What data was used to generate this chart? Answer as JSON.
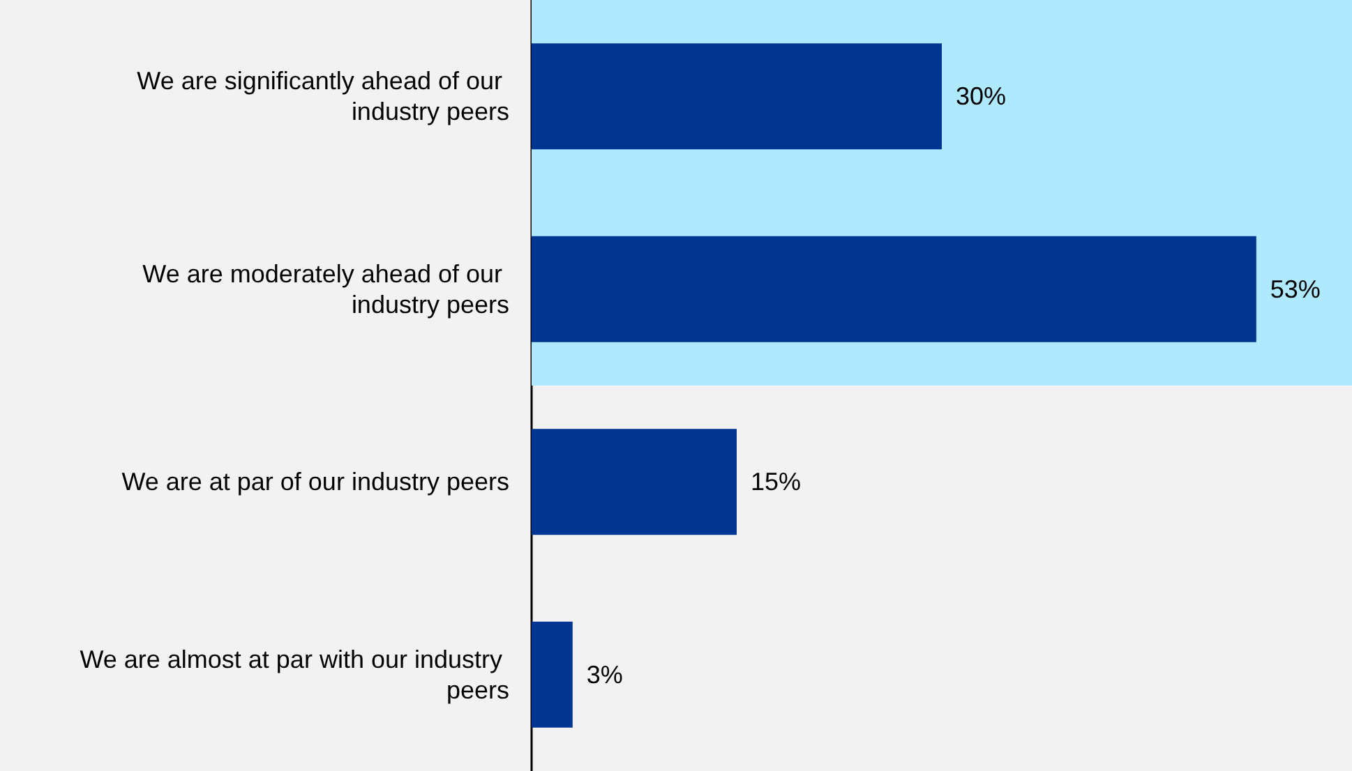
{
  "chart_data": {
    "type": "bar",
    "orientation": "horizontal",
    "categories": [
      "We are significantly ahead of our industry peers",
      "We are moderately ahead of our industry peers",
      "We are at par of our industry peers",
      "We are almost at par with our industry peers"
    ],
    "values": [
      30,
      53,
      15,
      3
    ],
    "color": "#003591",
    "value_labels": [
      "30%",
      "53%",
      "15%",
      "3%"
    ],
    "xlim": [
      0,
      60
    ],
    "tick_labels": "y",
    "bands": [
      {
        "axis": "y",
        "from": "We are significantly ahead of our industry peers",
        "to": "We are moderately ahead of our industry peers",
        "color": "#aee9ff"
      }
    ]
  }
}
